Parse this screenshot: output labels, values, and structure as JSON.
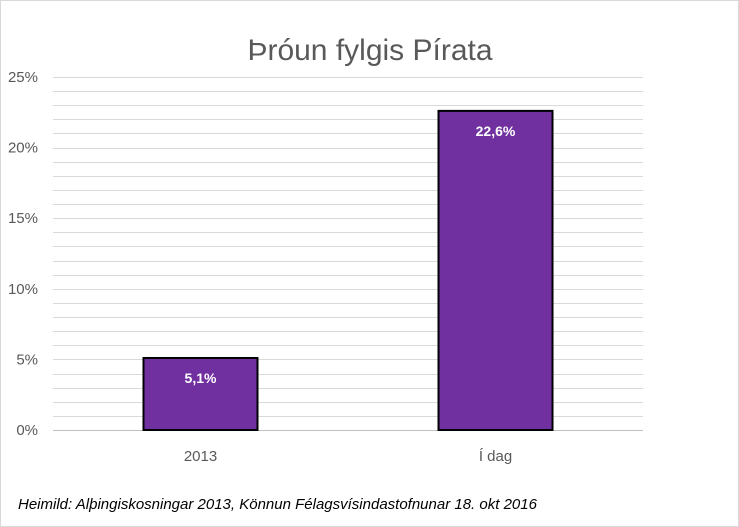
{
  "chart_data": {
    "type": "bar",
    "title": "Þróun fylgis Pírata",
    "categories": [
      "2013",
      "Í dag"
    ],
    "values": [
      5.1,
      22.6
    ],
    "data_labels": [
      "5,1%",
      "22,6%"
    ],
    "y_tick_labels": [
      "0%",
      "5%",
      "10%",
      "15%",
      "20%",
      "25%"
    ],
    "y_ticks": [
      0,
      5,
      10,
      15,
      20,
      25
    ],
    "ylim": [
      0,
      25
    ],
    "minor_grid_step": 1,
    "grid": true,
    "legend": "none",
    "colors": {
      "bar": "#7030a0",
      "bar_edge": "#000000",
      "grid": "#d9d9d9",
      "text": "#595959"
    }
  },
  "footer": {
    "source": "Heimild: Alþingiskosningar 2013, Könnun Félagsvísindastofnunar 18. okt 2016"
  }
}
